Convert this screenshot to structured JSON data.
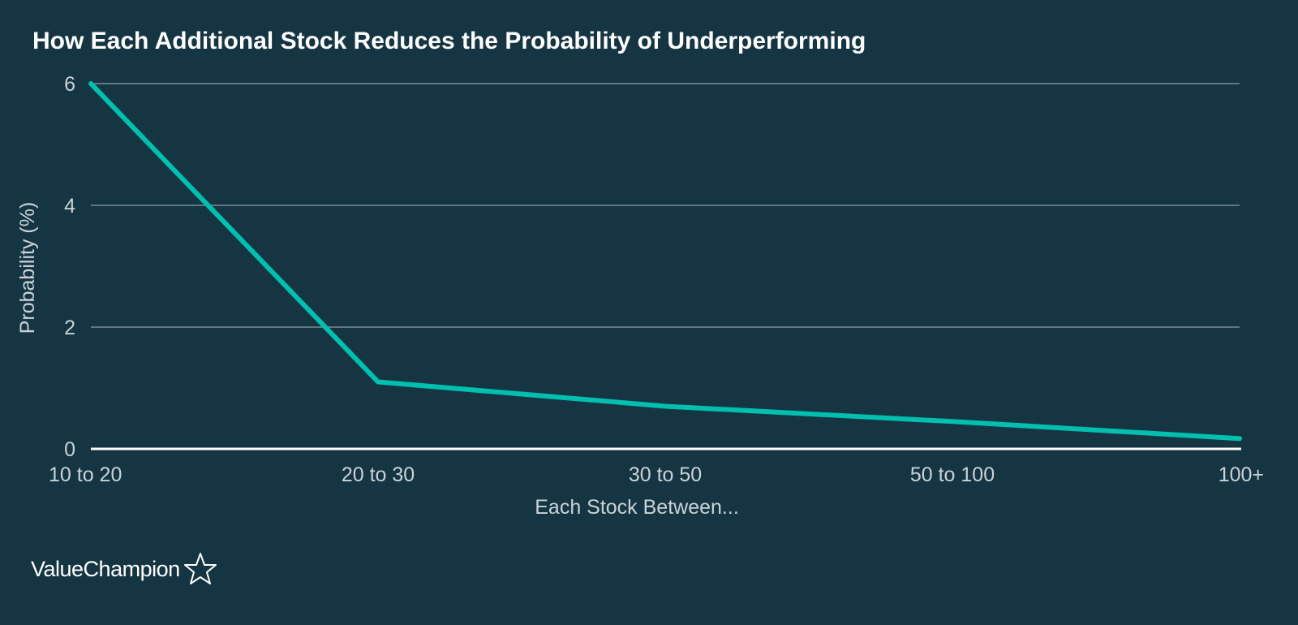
{
  "chart_data": {
    "type": "line",
    "title": "How Each Additional Stock Reduces the Probability of Underperforming",
    "xlabel": "Each Stock Between...",
    "ylabel": "Probability (%)",
    "categories": [
      "10 to 20",
      "20 to 30",
      "30 to 50",
      "50 to 100",
      "100+"
    ],
    "series": [
      {
        "values": [
          6.0,
          1.1,
          0.7,
          0.45,
          0.17
        ]
      }
    ],
    "ylim": [
      0,
      6
    ],
    "yticks": [
      0,
      2,
      4,
      6
    ],
    "grid": true,
    "legend": "none",
    "line_color": "#00bfae",
    "background": "#153543"
  },
  "brand": {
    "name": "ValueChampion",
    "icon": "star-outline-icon"
  }
}
